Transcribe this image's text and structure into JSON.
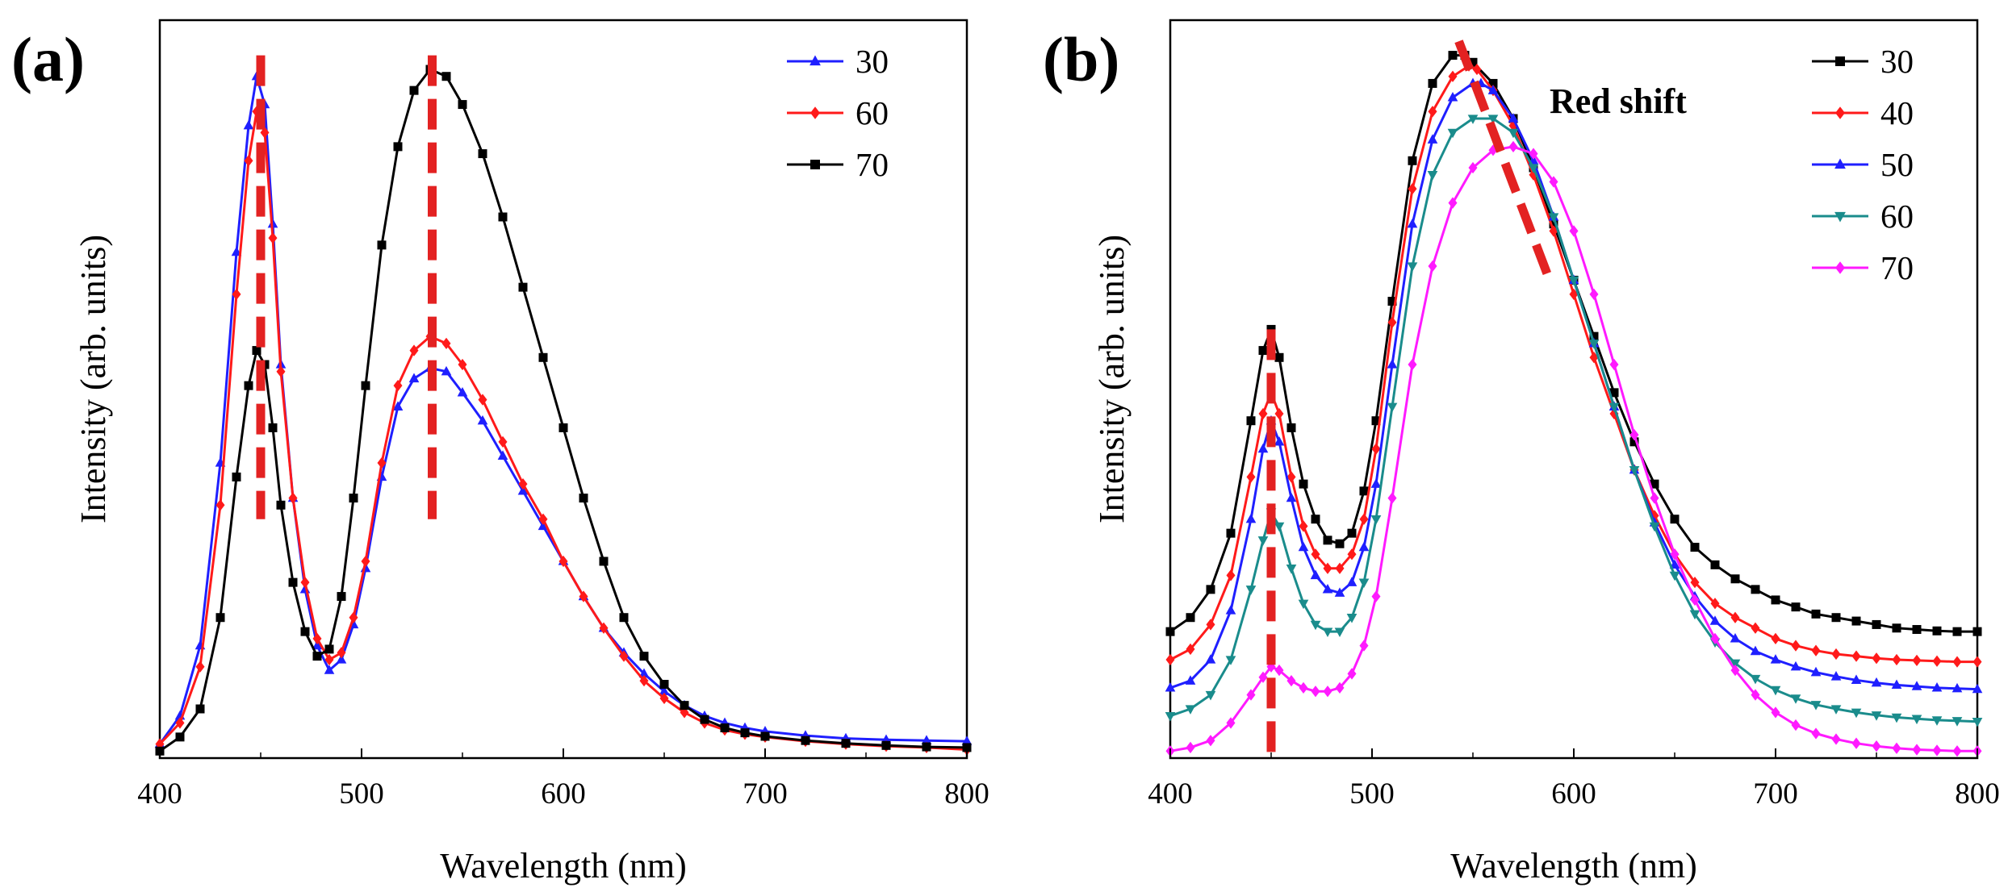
{
  "chart_data": [
    {
      "type": "line",
      "panel_label": "(a)",
      "xlabel": "Wavelength (nm)",
      "ylabel": "Intensity (arb. units)",
      "xlim": [
        400,
        800
      ],
      "ylim": [
        0,
        1.05
      ],
      "x_ticks": [
        400,
        500,
        600,
        700,
        800
      ],
      "y_ticks": [],
      "grid": false,
      "legend_position": "top-right",
      "series": [
        {
          "name": "30",
          "color": "#1f1fff",
          "marker": "triangle-up",
          "x": [
            400,
            410,
            420,
            430,
            438,
            444,
            448,
            452,
            456,
            460,
            466,
            472,
            478,
            484,
            490,
            496,
            502,
            510,
            518,
            526,
            534,
            542,
            550,
            560,
            570,
            580,
            590,
            600,
            610,
            620,
            630,
            640,
            650,
            660,
            670,
            680,
            690,
            700,
            720,
            740,
            760,
            780,
            800
          ],
          "y": [
            0.02,
            0.06,
            0.16,
            0.42,
            0.72,
            0.9,
            0.97,
            0.93,
            0.76,
            0.56,
            0.37,
            0.24,
            0.16,
            0.125,
            0.14,
            0.19,
            0.27,
            0.4,
            0.5,
            0.54,
            0.555,
            0.55,
            0.52,
            0.48,
            0.43,
            0.38,
            0.33,
            0.28,
            0.23,
            0.185,
            0.15,
            0.12,
            0.095,
            0.075,
            0.06,
            0.05,
            0.043,
            0.038,
            0.032,
            0.028,
            0.026,
            0.025,
            0.024
          ]
        },
        {
          "name": "60",
          "color": "#ff1a1a",
          "marker": "diamond",
          "x": [
            400,
            410,
            420,
            430,
            438,
            444,
            448,
            452,
            456,
            460,
            466,
            472,
            478,
            484,
            490,
            496,
            502,
            510,
            518,
            526,
            534,
            542,
            550,
            560,
            570,
            580,
            590,
            600,
            610,
            620,
            630,
            640,
            650,
            660,
            670,
            680,
            690,
            700,
            720,
            740,
            760,
            780,
            800
          ],
          "y": [
            0.02,
            0.05,
            0.13,
            0.36,
            0.66,
            0.85,
            0.92,
            0.89,
            0.74,
            0.55,
            0.37,
            0.25,
            0.17,
            0.14,
            0.15,
            0.2,
            0.28,
            0.42,
            0.53,
            0.58,
            0.6,
            0.59,
            0.56,
            0.51,
            0.45,
            0.39,
            0.34,
            0.28,
            0.23,
            0.185,
            0.145,
            0.11,
            0.085,
            0.065,
            0.05,
            0.04,
            0.034,
            0.03,
            0.024,
            0.02,
            0.017,
            0.015,
            0.012
          ]
        },
        {
          "name": "70",
          "color": "#000000",
          "marker": "square",
          "x": [
            400,
            410,
            420,
            430,
            438,
            444,
            448,
            452,
            456,
            460,
            466,
            472,
            478,
            484,
            490,
            496,
            502,
            510,
            518,
            526,
            534,
            542,
            550,
            560,
            570,
            580,
            590,
            600,
            610,
            620,
            630,
            640,
            650,
            660,
            670,
            680,
            690,
            700,
            720,
            740,
            760,
            780,
            800
          ],
          "y": [
            0.01,
            0.03,
            0.07,
            0.2,
            0.4,
            0.53,
            0.58,
            0.56,
            0.47,
            0.36,
            0.25,
            0.18,
            0.145,
            0.155,
            0.23,
            0.37,
            0.53,
            0.73,
            0.87,
            0.95,
            0.98,
            0.97,
            0.93,
            0.86,
            0.77,
            0.67,
            0.57,
            0.47,
            0.37,
            0.28,
            0.2,
            0.145,
            0.105,
            0.075,
            0.055,
            0.043,
            0.036,
            0.031,
            0.025,
            0.021,
            0.018,
            0.016,
            0.015
          ]
        }
      ],
      "annotations": [
        {
          "type": "dashed-vertical-line",
          "x": 450,
          "y_range": [
            0.34,
            1.0
          ],
          "color": "#e32222"
        },
        {
          "type": "dashed-vertical-line",
          "x": 535,
          "y_range": [
            0.34,
            1.0
          ],
          "color": "#e32222"
        }
      ]
    },
    {
      "type": "line",
      "panel_label": "(b)",
      "xlabel": "Wavelength (nm)",
      "ylabel": "Intensity (arb. units)",
      "xlim": [
        400,
        800
      ],
      "ylim": [
        0,
        1.05
      ],
      "x_ticks": [
        400,
        500,
        600,
        700,
        800
      ],
      "y_ticks": [],
      "grid": false,
      "legend_position": "top-right",
      "annotation_text": "Red shift",
      "series": [
        {
          "name": "30",
          "color": "#000000",
          "marker": "square",
          "x": [
            400,
            410,
            420,
            430,
            440,
            446,
            450,
            454,
            460,
            466,
            472,
            478,
            484,
            490,
            496,
            502,
            510,
            520,
            530,
            540,
            546,
            550,
            560,
            570,
            580,
            590,
            600,
            610,
            620,
            630,
            640,
            650,
            660,
            670,
            680,
            690,
            700,
            710,
            720,
            730,
            740,
            750,
            760,
            770,
            780,
            790,
            800
          ],
          "y": [
            0.18,
            0.2,
            0.24,
            0.32,
            0.48,
            0.58,
            0.61,
            0.57,
            0.47,
            0.39,
            0.34,
            0.31,
            0.305,
            0.32,
            0.38,
            0.48,
            0.65,
            0.85,
            0.96,
            1.0,
            1.0,
            0.99,
            0.96,
            0.91,
            0.84,
            0.76,
            0.68,
            0.6,
            0.52,
            0.45,
            0.39,
            0.34,
            0.3,
            0.275,
            0.255,
            0.24,
            0.225,
            0.215,
            0.205,
            0.2,
            0.195,
            0.19,
            0.185,
            0.183,
            0.181,
            0.18,
            0.18
          ]
        },
        {
          "name": "40",
          "color": "#ff1a1a",
          "marker": "diamond",
          "x": [
            400,
            410,
            420,
            430,
            440,
            446,
            450,
            454,
            460,
            466,
            472,
            478,
            484,
            490,
            496,
            502,
            510,
            520,
            530,
            540,
            548,
            552,
            560,
            570,
            580,
            590,
            600,
            610,
            620,
            630,
            640,
            650,
            660,
            670,
            680,
            690,
            700,
            710,
            720,
            730,
            740,
            750,
            760,
            770,
            780,
            790,
            800
          ],
          "y": [
            0.14,
            0.155,
            0.19,
            0.26,
            0.4,
            0.49,
            0.52,
            0.49,
            0.4,
            0.33,
            0.29,
            0.27,
            0.27,
            0.29,
            0.34,
            0.44,
            0.62,
            0.81,
            0.92,
            0.97,
            0.985,
            0.98,
            0.95,
            0.9,
            0.83,
            0.75,
            0.66,
            0.57,
            0.49,
            0.41,
            0.345,
            0.29,
            0.25,
            0.22,
            0.2,
            0.185,
            0.17,
            0.16,
            0.153,
            0.148,
            0.145,
            0.142,
            0.14,
            0.139,
            0.138,
            0.137,
            0.137
          ]
        },
        {
          "name": "50",
          "color": "#1f1fff",
          "marker": "triangle-up",
          "x": [
            400,
            410,
            420,
            430,
            440,
            446,
            450,
            454,
            460,
            466,
            472,
            478,
            484,
            490,
            496,
            502,
            510,
            520,
            530,
            540,
            550,
            554,
            560,
            570,
            580,
            590,
            600,
            610,
            620,
            630,
            640,
            650,
            660,
            670,
            680,
            690,
            700,
            710,
            720,
            730,
            740,
            750,
            760,
            770,
            780,
            790,
            800
          ],
          "y": [
            0.1,
            0.11,
            0.14,
            0.21,
            0.34,
            0.44,
            0.48,
            0.45,
            0.37,
            0.3,
            0.26,
            0.24,
            0.235,
            0.25,
            0.3,
            0.39,
            0.56,
            0.76,
            0.88,
            0.94,
            0.96,
            0.96,
            0.95,
            0.91,
            0.85,
            0.77,
            0.68,
            0.59,
            0.5,
            0.41,
            0.335,
            0.275,
            0.23,
            0.195,
            0.17,
            0.152,
            0.14,
            0.13,
            0.122,
            0.116,
            0.111,
            0.107,
            0.104,
            0.102,
            0.1,
            0.099,
            0.098
          ]
        },
        {
          "name": "60",
          "color": "#1a8c8c",
          "marker": "triangle-down",
          "x": [
            400,
            410,
            420,
            430,
            440,
            446,
            450,
            454,
            460,
            466,
            472,
            478,
            484,
            490,
            496,
            502,
            510,
            520,
            530,
            540,
            550,
            560,
            570,
            580,
            590,
            600,
            610,
            620,
            630,
            640,
            650,
            660,
            670,
            680,
            690,
            700,
            710,
            720,
            730,
            740,
            750,
            760,
            770,
            780,
            790,
            800
          ],
          "y": [
            0.06,
            0.07,
            0.09,
            0.14,
            0.24,
            0.31,
            0.35,
            0.33,
            0.27,
            0.22,
            0.19,
            0.18,
            0.18,
            0.2,
            0.25,
            0.34,
            0.5,
            0.7,
            0.83,
            0.89,
            0.91,
            0.91,
            0.89,
            0.84,
            0.77,
            0.68,
            0.59,
            0.5,
            0.41,
            0.33,
            0.26,
            0.205,
            0.165,
            0.135,
            0.113,
            0.097,
            0.085,
            0.076,
            0.07,
            0.065,
            0.061,
            0.058,
            0.056,
            0.054,
            0.053,
            0.052
          ]
        },
        {
          "name": "70",
          "color": "#ff1aff",
          "marker": "diamond",
          "x": [
            400,
            410,
            420,
            430,
            440,
            446,
            450,
            454,
            460,
            466,
            472,
            478,
            484,
            490,
            496,
            502,
            510,
            520,
            530,
            540,
            550,
            560,
            570,
            580,
            590,
            600,
            610,
            620,
            630,
            640,
            650,
            660,
            670,
            680,
            690,
            700,
            710,
            720,
            730,
            740,
            750,
            760,
            770,
            780,
            790,
            800
          ],
          "y": [
            0.01,
            0.015,
            0.025,
            0.05,
            0.09,
            0.115,
            0.13,
            0.125,
            0.11,
            0.1,
            0.095,
            0.095,
            0.1,
            0.12,
            0.16,
            0.23,
            0.37,
            0.56,
            0.7,
            0.79,
            0.84,
            0.865,
            0.87,
            0.86,
            0.82,
            0.75,
            0.66,
            0.56,
            0.46,
            0.37,
            0.29,
            0.225,
            0.17,
            0.125,
            0.09,
            0.065,
            0.047,
            0.035,
            0.027,
            0.021,
            0.017,
            0.014,
            0.012,
            0.011,
            0.01,
            0.01
          ]
        }
      ],
      "annotations": [
        {
          "type": "dashed-vertical-line",
          "x": 450,
          "y_range": [
            0.0,
            0.61
          ],
          "color": "#e32222"
        },
        {
          "type": "dashed-diagonal-line",
          "from": [
            543,
            1.02
          ],
          "to": [
            588,
            0.68
          ],
          "color": "#e32222"
        }
      ]
    }
  ]
}
